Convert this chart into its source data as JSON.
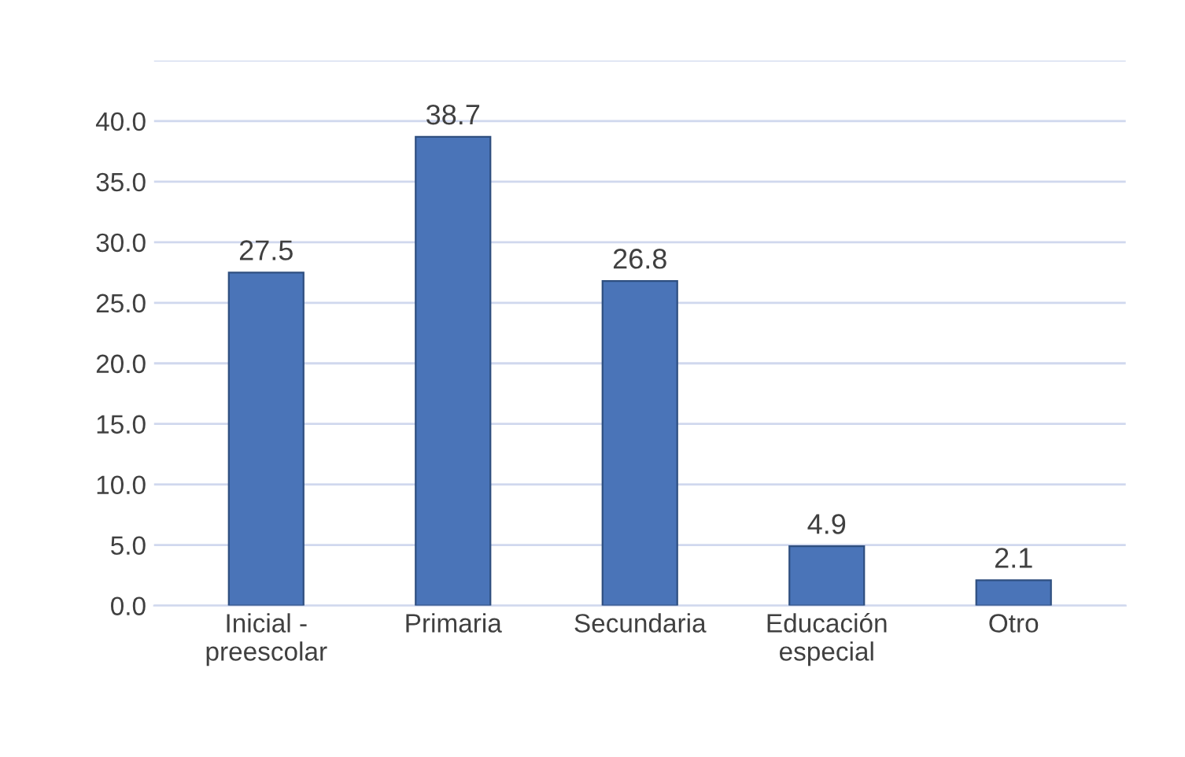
{
  "chart_data": {
    "type": "bar",
    "categories": [
      "Inicial -\npreescolar",
      "Primaria",
      "Secundaria",
      "Educación\nespecial",
      "Otro"
    ],
    "values": [
      27.5,
      38.7,
      26.8,
      4.9,
      2.1
    ],
    "color": "#4a74b8",
    "ylim": [
      0,
      45
    ],
    "yticks": [
      {
        "value": 0,
        "label": "0.0"
      },
      {
        "value": 5,
        "label": "5.0"
      },
      {
        "value": 10,
        "label": "10.0"
      },
      {
        "value": 15,
        "label": "15.0"
      },
      {
        "value": 20,
        "label": "20.0"
      },
      {
        "value": 25,
        "label": "25.0"
      },
      {
        "value": 30,
        "label": "30.0"
      },
      {
        "value": 35,
        "label": "35.0"
      },
      {
        "value": 40,
        "label": "40.0"
      },
      {
        "value": 45,
        "label": null
      }
    ],
    "grid": "y",
    "data_labels": true
  }
}
